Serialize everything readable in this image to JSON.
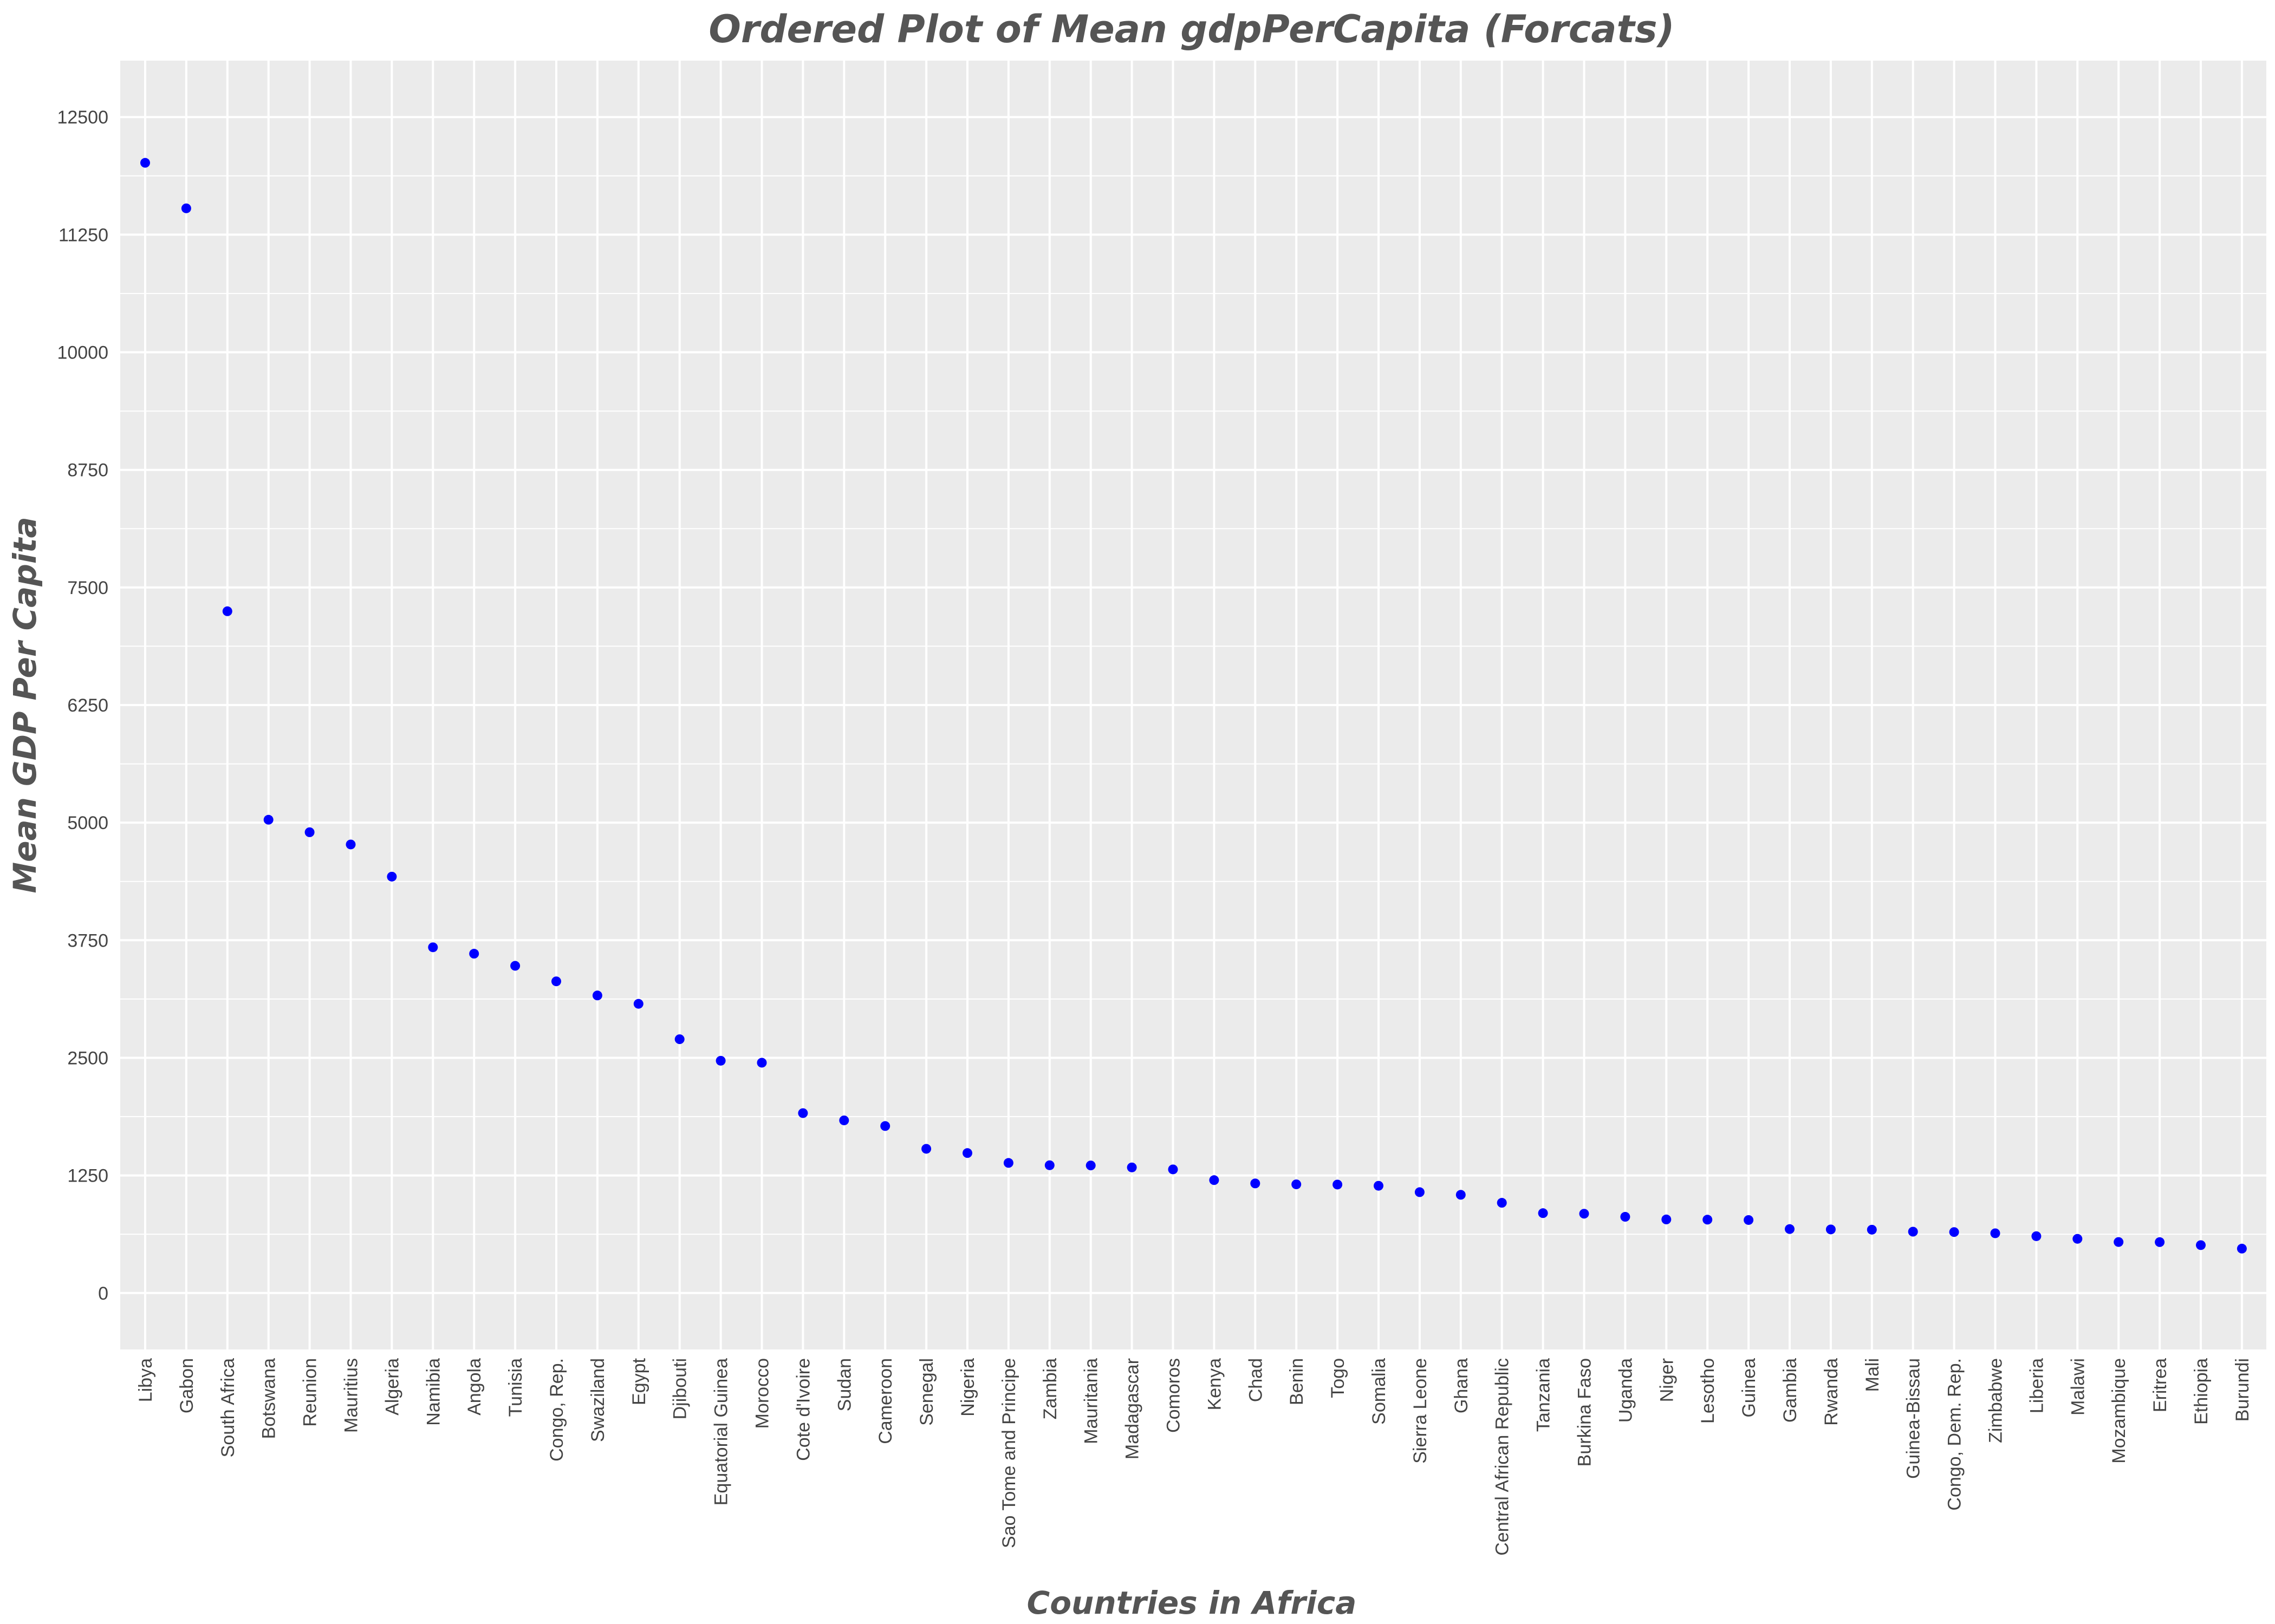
{
  "chart_data": {
    "type": "scatter",
    "title": "Ordered Plot of Mean gdpPerCapita (Forcats)",
    "xlabel": "Countries in Africa",
    "ylabel": "Mean GDP Per Capita",
    "ylim": [
      -600,
      13100
    ],
    "yticks": [
      0,
      1250,
      2500,
      3750,
      5000,
      6250,
      7500,
      8750,
      10000,
      11250,
      12500
    ],
    "grid": true,
    "point_color": "#0000ff",
    "background_color": "#ebebeb",
    "categories": [
      "Libya",
      "Gabon",
      "South Africa",
      "Botswana",
      "Reunion",
      "Mauritius",
      "Algeria",
      "Namibia",
      "Angola",
      "Tunisia",
      "Congo, Rep.",
      "Swaziland",
      "Egypt",
      "Djibouti",
      "Equatorial Guinea",
      "Morocco",
      "Cote d'Ivoire",
      "Sudan",
      "Cameroon",
      "Senegal",
      "Nigeria",
      "Sao Tome and Principe",
      "Zambia",
      "Mauritania",
      "Madagascar",
      "Comoros",
      "Kenya",
      "Chad",
      "Benin",
      "Togo",
      "Somalia",
      "Sierra Leone",
      "Ghana",
      "Central African Republic",
      "Tanzania",
      "Burkina Faso",
      "Uganda",
      "Niger",
      "Lesotho",
      "Guinea",
      "Gambia",
      "Rwanda",
      "Mali",
      "Guinea-Bissau",
      "Congo, Dem. Rep.",
      "Zimbabwe",
      "Liberia",
      "Malawi",
      "Mozambique",
      "Eritrea",
      "Ethiopia",
      "Burundi"
    ],
    "values": [
      12014,
      11530,
      7247,
      5031,
      4898,
      4768,
      4426,
      3675,
      3607,
      3478,
      3313,
      3163,
      3074,
      2698,
      2469,
      2448,
      1912,
      1835,
      1775,
      1533,
      1488,
      1383,
      1358,
      1356,
      1335,
      1314,
      1200,
      1165,
      1155,
      1153,
      1140,
      1072,
      1044,
      959,
      849,
      843,
      810,
      782,
      780,
      776,
      680,
      676,
      673,
      652,
      648,
      635,
      604,
      576,
      542,
      541,
      509,
      472
    ]
  }
}
